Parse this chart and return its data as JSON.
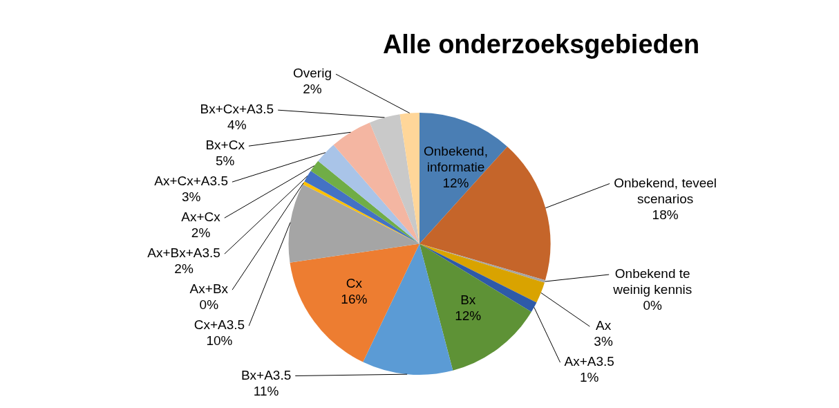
{
  "chart_data": {
    "type": "pie",
    "title": "Alle onderzoeksgebieden",
    "categories": [
      "Onbekend, informatie",
      "Onbekend, teveel scenarios",
      "Onbekend te weinig kennis",
      "Ax",
      "Ax+A3.5",
      "Bx",
      "Bx+A3.5",
      "Cx",
      "Cx+A3.5",
      "Ax+Bx",
      "Ax+Bx+A3.5",
      "Ax+Cx",
      "Ax+Cx+A3.5",
      "Bx+Cx",
      "Bx+Cx+A3.5",
      "Overig"
    ],
    "values": [
      11.7,
      17.8,
      0.3,
      2.6,
      1.3,
      12.2,
      11.2,
      15.6,
      9.8,
      0.4,
      1.5,
      1.5,
      2.7,
      5.2,
      3.8,
      2.4
    ],
    "value_labels": [
      "12%",
      "18%",
      "0%",
      "3%",
      "1%",
      "12%",
      "11%",
      "16%",
      "10%",
      "0%",
      "2%",
      "2%",
      "3%",
      "5%",
      "4%",
      "2%"
    ],
    "colors": [
      "#4a7eb4",
      "#c5652a",
      "#a5a5a5",
      "#d9a300",
      "#2e5aa8",
      "#5e9236",
      "#5b9bd5",
      "#ed7d31",
      "#a5a5a5",
      "#ffc000",
      "#4472c4",
      "#70ad47",
      "#a9c4e8",
      "#f4b6a2",
      "#c9c9c9",
      "#ffd699"
    ],
    "legend": false
  }
}
